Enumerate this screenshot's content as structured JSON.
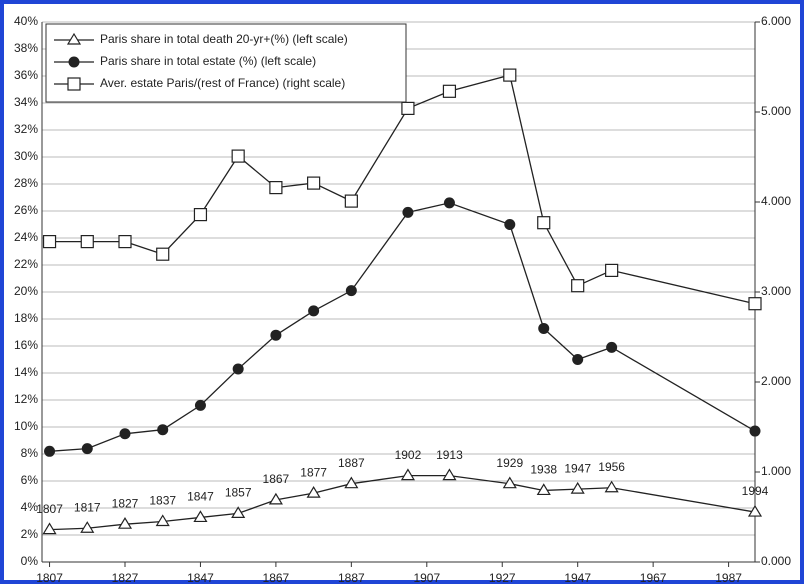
{
  "chart_data": {
    "type": "line",
    "x": [
      1807,
      1817,
      1827,
      1837,
      1847,
      1857,
      1867,
      1877,
      1887,
      1902,
      1913,
      1929,
      1938,
      1947,
      1956,
      1994
    ],
    "series": [
      {
        "name": "Paris share in total death 20-yr+(%) (left scale)",
        "color": "#222222",
        "marker": "triangle",
        "values": [
          2.4,
          2.5,
          2.8,
          3.0,
          3.3,
          3.6,
          4.6,
          5.1,
          5.8,
          6.4,
          6.4,
          5.8,
          5.3,
          5.4,
          5.5,
          3.7
        ]
      },
      {
        "name": "Paris share in total estate (%) (left scale)",
        "color": "#222222",
        "marker": "circle",
        "values": [
          8.2,
          8.4,
          9.5,
          9.8,
          11.6,
          14.3,
          16.8,
          18.6,
          20.1,
          25.9,
          26.6,
          25.0,
          17.3,
          15.0,
          15.9,
          9.7
        ]
      },
      {
        "name": "Aver. estate Paris/(rest of France) (right scale)",
        "color": "#222222",
        "marker": "square",
        "axis": "y2",
        "values": [
          3.56,
          3.56,
          3.56,
          3.42,
          3.86,
          4.51,
          4.16,
          4.21,
          4.01,
          5.04,
          5.23,
          5.41,
          3.77,
          3.07,
          3.24,
          2.87
        ]
      }
    ],
    "xlim": [
      1805,
      1994
    ],
    "xticks": [
      1807,
      1827,
      1847,
      1867,
      1887,
      1907,
      1927,
      1947,
      1967,
      1987
    ],
    "ylim": [
      0,
      40
    ],
    "yticks": [
      {
        "value": 0,
        "label": "0%"
      },
      {
        "value": 2,
        "label": "2%"
      },
      {
        "value": 4,
        "label": "4%"
      },
      {
        "value": 6,
        "label": "6%"
      },
      {
        "value": 8,
        "label": "8%"
      },
      {
        "value": 10,
        "label": "10%"
      },
      {
        "value": 12,
        "label": "12%"
      },
      {
        "value": 14,
        "label": "14%"
      },
      {
        "value": 16,
        "label": "16%"
      },
      {
        "value": 18,
        "label": "18%"
      },
      {
        "value": 20,
        "label": "20%"
      },
      {
        "value": 22,
        "label": "22%"
      },
      {
        "value": 24,
        "label": "24%"
      },
      {
        "value": 26,
        "label": "26%"
      },
      {
        "value": 28,
        "label": "28%"
      },
      {
        "value": 30,
        "label": "30%"
      },
      {
        "value": 32,
        "label": "32%"
      },
      {
        "value": 34,
        "label": "34%"
      },
      {
        "value": 36,
        "label": "36%"
      },
      {
        "value": 38,
        "label": "38%"
      },
      {
        "value": 40,
        "label": "40%"
      }
    ],
    "y2lim": [
      0,
      6
    ],
    "y2ticks": [
      {
        "value": 0,
        "label": "0.000"
      },
      {
        "value": 1,
        "label": "1.000"
      },
      {
        "value": 2,
        "label": "2.000"
      },
      {
        "value": 3,
        "label": "3.000"
      },
      {
        "value": 4,
        "label": "4.000"
      },
      {
        "value": 5,
        "label": "5.000"
      },
      {
        "value": 6,
        "label": "6.000"
      }
    ],
    "grid": true,
    "legend": "top-left",
    "point_labels_series": 0
  }
}
